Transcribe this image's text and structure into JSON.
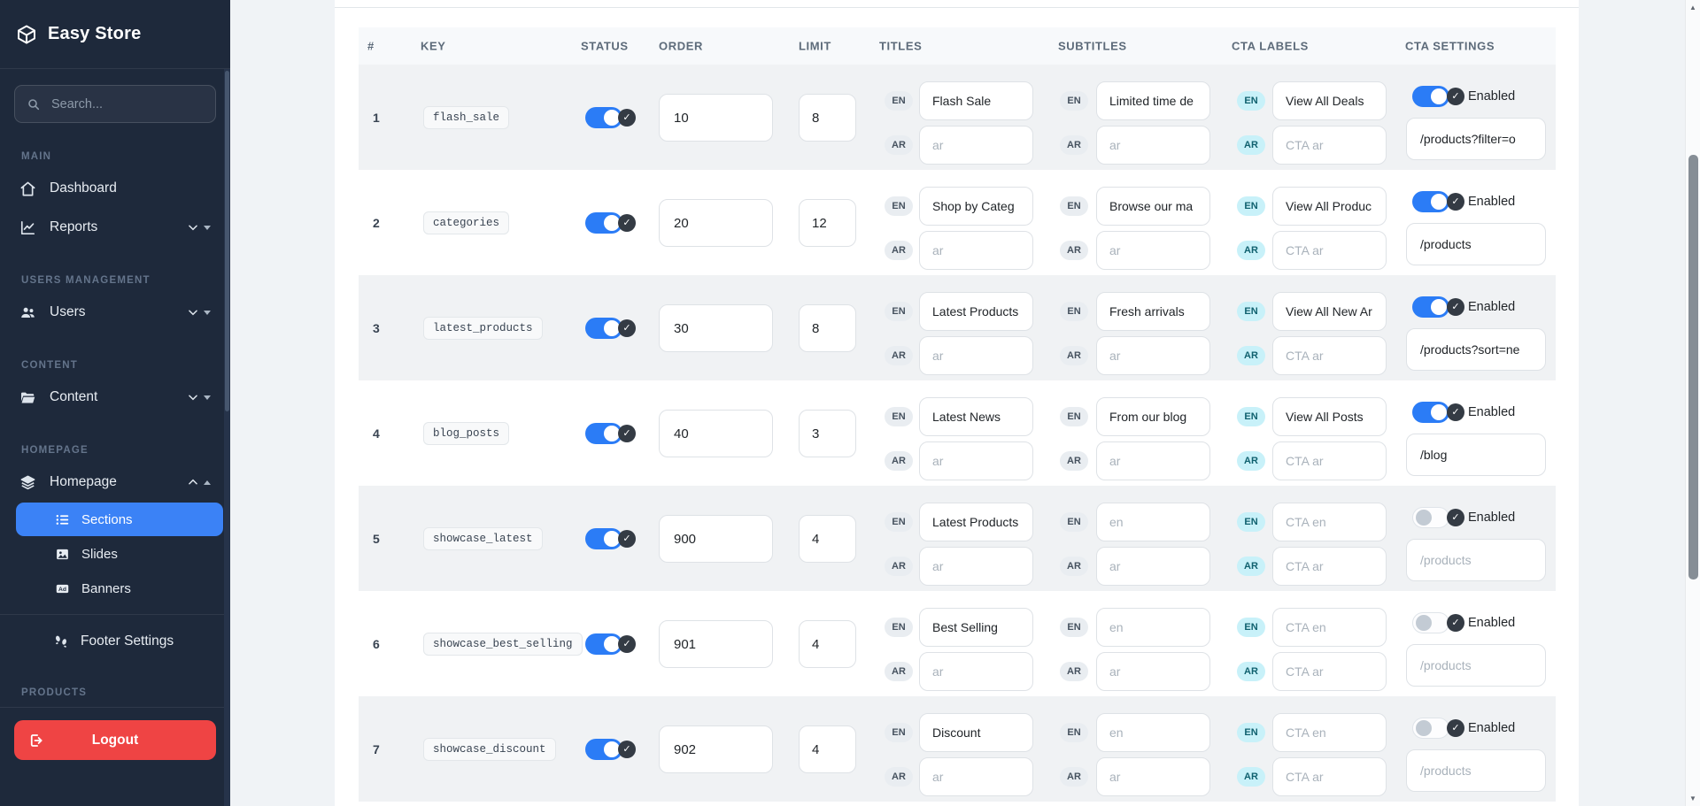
{
  "colors": {
    "sidebar_bg": "#1e293b",
    "active_item": "#3b82f6",
    "logout_red": "#ef4444",
    "toggle_on_blue": "#2b7cf6",
    "cyan_badge_bg": "#c8f1f9",
    "stripe_row": "#f0f2f4"
  },
  "sidebar": {
    "brand": "Easy Store",
    "search_placeholder": "Search...",
    "section_main": "MAIN",
    "item_dashboard": "Dashboard",
    "item_reports": "Reports",
    "section_users": "USERS MANAGEMENT",
    "item_users": "Users",
    "section_content": "CONTENT",
    "item_content": "Content",
    "section_homepage": "HOMEPAGE",
    "item_homepage": "Homepage",
    "sub_sections": "Sections",
    "sub_slides": "Slides",
    "sub_banners": "Banners",
    "item_footer_settings": "Footer Settings",
    "section_products": "PRODUCTS",
    "logout": "Logout"
  },
  "table": {
    "headers": [
      "#",
      "KEY",
      "STATUS",
      "ORDER",
      "LIMIT",
      "TITLES",
      "SUBTITLES",
      "CTA LABELS",
      "CTA SETTINGS"
    ],
    "lang_en": "EN",
    "lang_ar": "AR",
    "enabled_label": "Enabled",
    "rows": [
      {
        "num": "1",
        "key": "flash_sale",
        "status_on": true,
        "order": "10",
        "limit": "8",
        "title_en": {
          "value": "Flash Sale",
          "placeholder": ""
        },
        "title_ar": {
          "value": "",
          "placeholder": "ar"
        },
        "subtitle_en": {
          "value": "Limited time de",
          "placeholder": ""
        },
        "subtitle_ar": {
          "value": "",
          "placeholder": "ar"
        },
        "cta_en": {
          "value": "View All Deals",
          "placeholder": ""
        },
        "cta_ar": {
          "value": "",
          "placeholder": "CTA ar"
        },
        "cta_enabled": true,
        "cta_url": {
          "value": "/products?filter=o",
          "placeholder": ""
        }
      },
      {
        "num": "2",
        "key": "categories",
        "status_on": true,
        "order": "20",
        "limit": "12",
        "title_en": {
          "value": "Shop by Categ",
          "placeholder": ""
        },
        "title_ar": {
          "value": "",
          "placeholder": "ar"
        },
        "subtitle_en": {
          "value": "Browse our ma",
          "placeholder": ""
        },
        "subtitle_ar": {
          "value": "",
          "placeholder": "ar"
        },
        "cta_en": {
          "value": "View All Produc",
          "placeholder": ""
        },
        "cta_ar": {
          "value": "",
          "placeholder": "CTA ar"
        },
        "cta_enabled": true,
        "cta_url": {
          "value": "/products",
          "placeholder": ""
        }
      },
      {
        "num": "3",
        "key": "latest_products",
        "status_on": true,
        "order": "30",
        "limit": "8",
        "title_en": {
          "value": "Latest Products",
          "placeholder": ""
        },
        "title_ar": {
          "value": "",
          "placeholder": "ar"
        },
        "subtitle_en": {
          "value": "Fresh arrivals",
          "placeholder": ""
        },
        "subtitle_ar": {
          "value": "",
          "placeholder": "ar"
        },
        "cta_en": {
          "value": "View All New Ar",
          "placeholder": ""
        },
        "cta_ar": {
          "value": "",
          "placeholder": "CTA ar"
        },
        "cta_enabled": true,
        "cta_url": {
          "value": "/products?sort=ne",
          "placeholder": ""
        }
      },
      {
        "num": "4",
        "key": "blog_posts",
        "status_on": true,
        "order": "40",
        "limit": "3",
        "title_en": {
          "value": "Latest News",
          "placeholder": ""
        },
        "title_ar": {
          "value": "",
          "placeholder": "ar"
        },
        "subtitle_en": {
          "value": "From our blog",
          "placeholder": ""
        },
        "subtitle_ar": {
          "value": "",
          "placeholder": "ar"
        },
        "cta_en": {
          "value": "View All Posts",
          "placeholder": ""
        },
        "cta_ar": {
          "value": "",
          "placeholder": "CTA ar"
        },
        "cta_enabled": true,
        "cta_url": {
          "value": "/blog",
          "placeholder": ""
        }
      },
      {
        "num": "5",
        "key": "showcase_latest",
        "status_on": true,
        "order": "900",
        "limit": "4",
        "title_en": {
          "value": "Latest Products",
          "placeholder": ""
        },
        "title_ar": {
          "value": "",
          "placeholder": "ar"
        },
        "subtitle_en": {
          "value": "",
          "placeholder": "en"
        },
        "subtitle_ar": {
          "value": "",
          "placeholder": "ar"
        },
        "cta_en": {
          "value": "",
          "placeholder": "CTA en"
        },
        "cta_ar": {
          "value": "",
          "placeholder": "CTA ar"
        },
        "cta_enabled": false,
        "cta_url": {
          "value": "",
          "placeholder": "/products"
        }
      },
      {
        "num": "6",
        "key": "showcase_best_selling",
        "status_on": true,
        "order": "901",
        "limit": "4",
        "title_en": {
          "value": "Best Selling",
          "placeholder": ""
        },
        "title_ar": {
          "value": "",
          "placeholder": "ar"
        },
        "subtitle_en": {
          "value": "",
          "placeholder": "en"
        },
        "subtitle_ar": {
          "value": "",
          "placeholder": "ar"
        },
        "cta_en": {
          "value": "",
          "placeholder": "CTA en"
        },
        "cta_ar": {
          "value": "",
          "placeholder": "CTA ar"
        },
        "cta_enabled": false,
        "cta_url": {
          "value": "",
          "placeholder": "/products"
        }
      },
      {
        "num": "7",
        "key": "showcase_discount",
        "status_on": true,
        "order": "902",
        "limit": "4",
        "title_en": {
          "value": "Discount",
          "placeholder": ""
        },
        "title_ar": {
          "value": "",
          "placeholder": "ar"
        },
        "subtitle_en": {
          "value": "",
          "placeholder": "en"
        },
        "subtitle_ar": {
          "value": "",
          "placeholder": "ar"
        },
        "cta_en": {
          "value": "",
          "placeholder": "CTA en"
        },
        "cta_ar": {
          "value": "",
          "placeholder": "CTA ar"
        },
        "cta_enabled": false,
        "cta_url": {
          "value": "",
          "placeholder": "/products"
        }
      }
    ]
  }
}
